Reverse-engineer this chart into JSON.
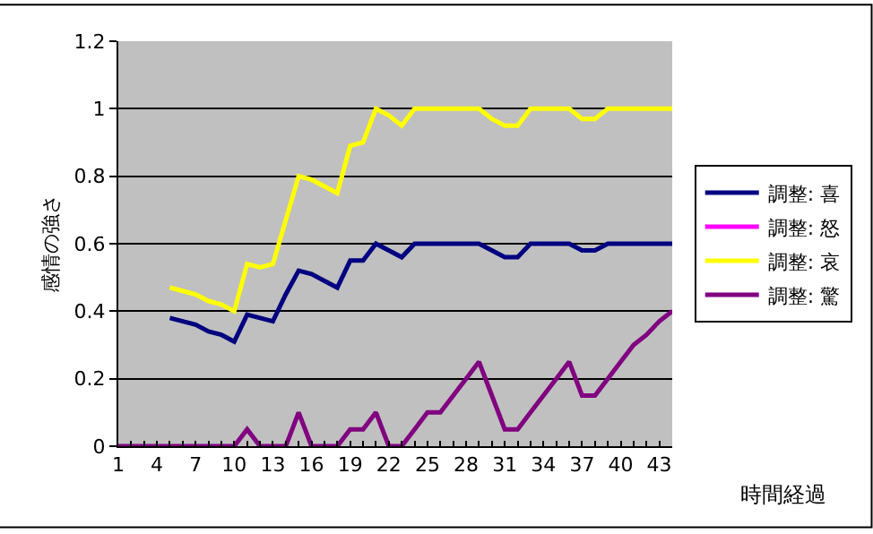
{
  "chart_data": {
    "type": "line",
    "xlabel": "時間経過",
    "ylabel": "感情の強さ",
    "categories": [
      "1",
      null,
      null,
      "4",
      null,
      null,
      "7",
      null,
      null,
      "10",
      null,
      null,
      "13",
      null,
      null,
      "16",
      null,
      null,
      "19",
      null,
      null,
      "22",
      null,
      null,
      "25",
      null,
      null,
      "28",
      null,
      null,
      "31",
      null,
      null,
      "34",
      null,
      null,
      "37",
      null,
      null,
      "40",
      null,
      null,
      "43",
      null
    ],
    "series": [
      {
        "name": "調整: 喜",
        "color": "#000080",
        "values": [
          null,
          null,
          null,
          null,
          0.38,
          0.37,
          0.36,
          0.34,
          0.33,
          0.31,
          0.39,
          0.38,
          0.37,
          0.45,
          0.52,
          0.51,
          0.49,
          0.47,
          0.55,
          0.55,
          0.6,
          0.58,
          0.56,
          0.6,
          0.6,
          0.6,
          0.6,
          0.6,
          0.6,
          0.58,
          0.56,
          0.56,
          0.6,
          0.6,
          0.6,
          0.6,
          0.58,
          0.58,
          0.6,
          0.6,
          0.6,
          0.6,
          0.6,
          0.6
        ]
      },
      {
        "name": "調整: 怒",
        "color": "#ff00ff",
        "values": [
          null,
          null,
          null,
          null,
          null,
          null,
          null,
          null,
          null,
          null,
          null,
          null,
          null,
          null,
          null,
          null,
          null,
          null,
          null,
          null,
          null,
          null,
          null,
          null,
          null,
          null,
          null,
          null,
          null,
          null,
          null,
          null,
          null,
          null,
          null,
          null,
          null,
          null,
          null,
          null,
          null,
          null,
          null,
          null
        ]
      },
      {
        "name": "調整: 哀",
        "color": "#ffff00",
        "values": [
          null,
          null,
          null,
          null,
          0.47,
          0.46,
          0.45,
          0.43,
          0.42,
          0.4,
          0.54,
          0.53,
          0.54,
          0.67,
          0.8,
          0.79,
          0.77,
          0.75,
          0.89,
          0.9,
          1.0,
          0.98,
          0.95,
          1.0,
          1.0,
          1.0,
          1.0,
          1.0,
          1.0,
          0.97,
          0.95,
          0.95,
          1.0,
          1.0,
          1.0,
          1.0,
          0.97,
          0.97,
          1.0,
          1.0,
          1.0,
          1.0,
          1.0,
          1.0
        ]
      },
      {
        "name": "調整: 驚",
        "color": "#800080",
        "values": [
          0,
          0,
          0,
          0,
          0,
          0,
          0,
          0,
          0,
          0,
          0.05,
          0,
          0,
          0,
          0.1,
          0,
          0,
          0,
          0.05,
          0.05,
          0.1,
          0,
          0,
          0.05,
          0.1,
          0.1,
          0.15,
          0.2,
          0.25,
          0.15,
          0.05,
          0.05,
          0.1,
          0.15,
          0.2,
          0.25,
          0.15,
          0.15,
          0.2,
          0.25,
          0.3,
          0.33,
          0.37,
          0.4
        ]
      }
    ],
    "ylim": [
      0,
      1.2
    ],
    "yticks": [
      0,
      0.2,
      0.4,
      0.6,
      0.8,
      1,
      1.2
    ],
    "grid": "y",
    "legend": "right",
    "marker": "none",
    "line_style": "solid"
  }
}
